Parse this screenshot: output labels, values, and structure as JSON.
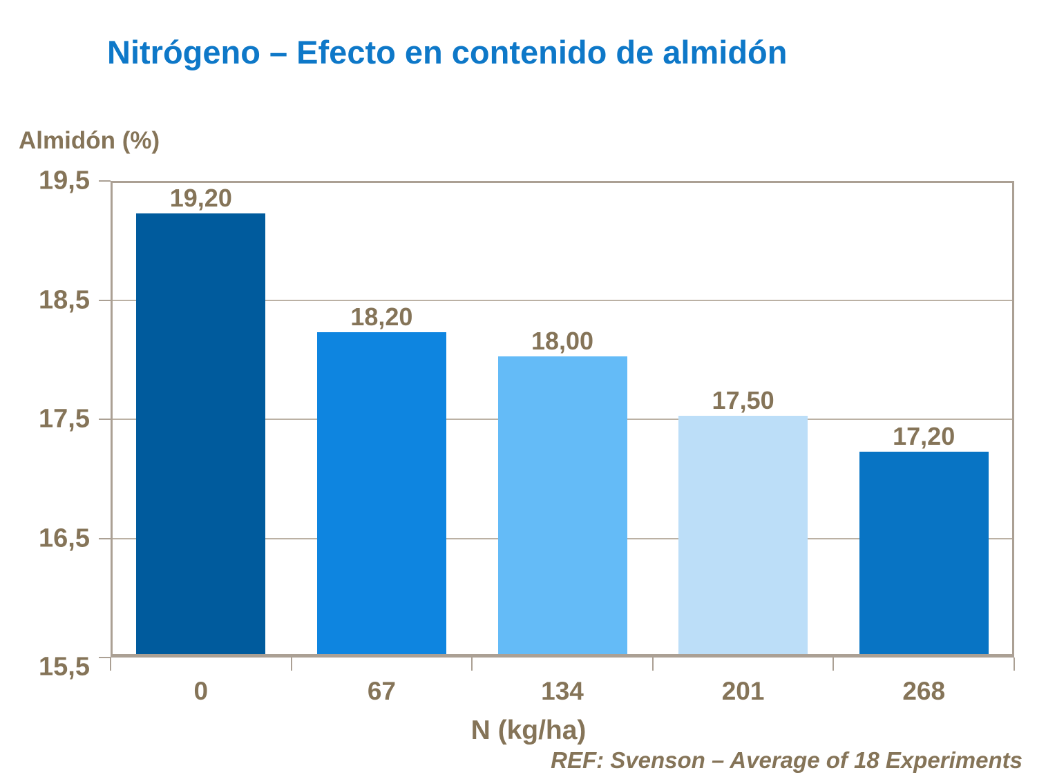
{
  "title": {
    "text": "Nitrógeno – Efecto en contenido de almidón"
  },
  "y_axis_label": "Almidón (%)",
  "x_axis_label": "N (kg/ha)",
  "footer": {
    "text": "REF: Svenson – Average of 18 Experiments"
  },
  "colors": {
    "title_blue": "#0E78C8",
    "text_tan": "#857458",
    "plot_border": "#ABA094",
    "gridline": "#BBB1A4",
    "background": "#FFFFFF"
  },
  "chart_data": {
    "type": "bar",
    "title": "Nitrógeno – Efecto en contenido de almidón",
    "categories": [
      "0",
      "67",
      "134",
      "201",
      "268"
    ],
    "values": [
      19.2,
      18.2,
      18.0,
      17.5,
      17.2
    ],
    "value_labels": [
      "19,20",
      "18,20",
      "18,00",
      "17,50",
      "17,20"
    ],
    "bar_colors": [
      "#005B9D",
      "#0E85E0",
      "#64BBF7",
      "#BCDEF8",
      "#0874C4"
    ],
    "xlabel": "N (kg/ha)",
    "ylabel": "Almidón (%)",
    "ylim": [
      15.5,
      19.5
    ],
    "y_tick_values": [
      19.5,
      18.5,
      17.5,
      16.5,
      15.5
    ],
    "y_tick_labels": [
      "19,5",
      "18,5",
      "17,5",
      "16,5",
      "15,5"
    ],
    "grid": "horizontal gridlines at labeled ticks only",
    "legend": "none",
    "decimal_separator": ","
  }
}
